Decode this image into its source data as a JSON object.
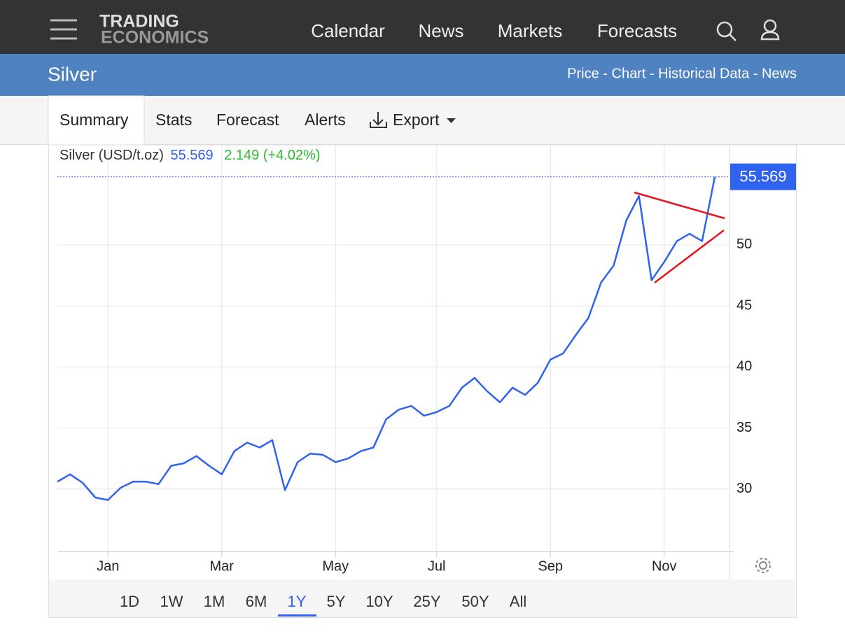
{
  "nav": {
    "logo": [
      "TRADING",
      "ECONOMICS"
    ],
    "links": [
      "Calendar",
      "News",
      "Markets",
      "Forecasts"
    ]
  },
  "header": {
    "title": "Silver",
    "links": "Price - Chart - Historical Data - News"
  },
  "tabs": [
    "Summary",
    "Stats",
    "Forecast",
    "Alerts",
    "Export"
  ],
  "chart_data": {
    "type": "line",
    "title": "Silver (USD/t.oz)",
    "change": "2.149 (+4.02%)",
    "categories": [
      null,
      null,
      null,
      null,
      "Jan",
      null,
      null,
      null,
      null,
      null,
      null,
      null,
      null,
      "Mar",
      null,
      null,
      null,
      null,
      null,
      null,
      null,
      null,
      "May",
      null,
      null,
      null,
      null,
      null,
      null,
      null,
      "Jul",
      null,
      null,
      null,
      null,
      null,
      null,
      null,
      null,
      "Sep",
      null,
      null,
      null,
      null,
      null,
      null,
      null,
      null,
      "Nov",
      null,
      null,
      null,
      null
    ],
    "series": [
      {
        "color": "#2f62ef",
        "values": [
          30.6,
          31.2,
          30.5,
          29.3,
          29.1,
          30.1,
          30.6,
          30.6,
          30.4,
          31.9,
          32.1,
          32.7,
          31.9,
          31.2,
          33.1,
          33.8,
          33.4,
          34.0,
          29.9,
          32.2,
          32.9,
          32.8,
          32.2,
          32.5,
          33.1,
          33.4,
          35.7,
          36.5,
          36.8,
          36.0,
          36.3,
          36.8,
          38.3,
          39.1,
          38.0,
          37.1,
          38.3,
          37.7,
          38.7,
          40.6,
          41.1,
          42.6,
          44.0,
          46.9,
          48.3,
          52.0,
          54.0,
          47.1,
          48.6,
          50.3,
          50.9,
          50.3,
          55.569
        ]
      }
    ],
    "ylim": [
      25,
      57.5
    ],
    "yticks": [
      30,
      35,
      40,
      45,
      50
    ],
    "grid": true
  },
  "ranges": [
    "1D",
    "1W",
    "1M",
    "6M",
    "1Y",
    "5Y",
    "10Y",
    "25Y",
    "50Y",
    "All"
  ]
}
